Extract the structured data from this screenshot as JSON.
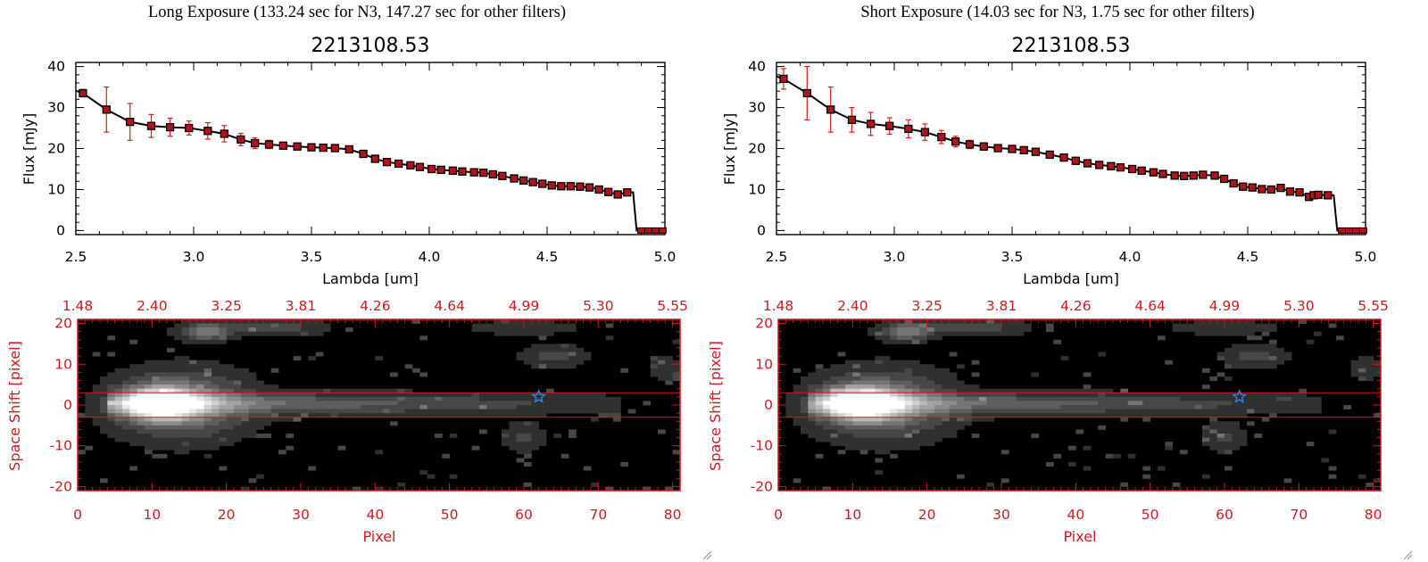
{
  "colors": {
    "spectrum_line": "#000000",
    "point_fill": "#b0141a",
    "error_bar": "#e01b1b",
    "image_axis": "#d0181e",
    "aperture_line": "#d0181e",
    "star_marker": "#2a8ae8",
    "image_background": "#000000"
  },
  "grip_icon": "resize-grip-icon",
  "panels": [
    {
      "exposure_title": "Long Exposure (133.24 sec for N3, 147.27 sec for other filters)",
      "object_id": "2213108.53"
    },
    {
      "exposure_title": "Short Exposure (14.03 sec for N3, 1.75 sec for other filters)",
      "object_id": "2213108.53"
    }
  ],
  "chart_data": [
    {
      "type": "line",
      "title": "2213108.53",
      "xlabel": "Lambda [um]",
      "ylabel": "Flux [mJy]",
      "xlim": [
        2.5,
        5.0
      ],
      "ylim": [
        -1,
        41
      ],
      "xticks": [
        "2.5",
        "3.0",
        "3.5",
        "4.0",
        "4.5",
        "5.0"
      ],
      "yticks": [
        "0",
        "10",
        "20",
        "30",
        "40"
      ],
      "x": [
        2.53,
        2.63,
        2.73,
        2.82,
        2.9,
        2.98,
        3.06,
        3.13,
        3.2,
        3.26,
        3.32,
        3.38,
        3.44,
        3.5,
        3.55,
        3.6,
        3.66,
        3.72,
        3.77,
        3.82,
        3.87,
        3.92,
        3.96,
        4.01,
        4.05,
        4.1,
        4.14,
        4.19,
        4.23,
        4.27,
        4.31,
        4.36,
        4.4,
        4.44,
        4.48,
        4.52,
        4.56,
        4.6,
        4.64,
        4.68,
        4.72,
        4.76,
        4.8,
        4.84
      ],
      "series": [
        {
          "name": "Flux",
          "values": [
            33.5,
            29.5,
            26.5,
            25.5,
            25.2,
            25.0,
            24.3,
            23.6,
            22.2,
            21.3,
            21.0,
            20.7,
            20.5,
            20.3,
            20.2,
            20.1,
            19.8,
            18.7,
            17.5,
            16.7,
            16.3,
            15.9,
            15.5,
            15.0,
            14.8,
            14.6,
            14.4,
            14.2,
            14.1,
            13.7,
            13.3,
            12.7,
            12.2,
            11.8,
            11.4,
            11.0,
            10.8,
            10.8,
            10.7,
            10.5,
            10.0,
            9.4,
            8.8,
            9.3
          ],
          "errors": [
            0.9,
            5.5,
            4.5,
            2.8,
            2.2,
            1.7,
            2.0,
            2.0,
            1.5,
            1.3,
            1.0,
            0.8,
            0.7,
            0.6,
            0.6,
            0.6,
            0.6,
            0.6,
            0.6,
            0.5,
            0.5,
            0.5,
            0.5,
            0.5,
            0.5,
            0.5,
            0.5,
            0.5,
            0.5,
            0.5,
            0.5,
            0.5,
            0.5,
            0.5,
            0.5,
            0.5,
            0.5,
            0.5,
            0.5,
            0.5,
            0.5,
            0.5,
            0.5,
            0.5
          ]
        }
      ],
      "drop_to_zero": {
        "x_start": 4.865,
        "x_end": 4.88
      },
      "zero_points_x": [
        4.9,
        4.93,
        4.96,
        4.99
      ],
      "image": {
        "xlabel": "Pixel",
        "ylabel": "Space Shift [pixel]",
        "xlim": [
          0,
          81
        ],
        "ylim": [
          -21,
          21
        ],
        "xticks": [
          "0",
          "10",
          "20",
          "30",
          "40",
          "50",
          "60",
          "70",
          "80"
        ],
        "yticks": [
          "-20",
          "-10",
          "0",
          "10",
          "20"
        ],
        "top_ticks": [
          "1.48",
          "2.40",
          "3.25",
          "3.81",
          "4.26",
          "4.64",
          "4.99",
          "5.30",
          "5.55"
        ],
        "aperture": [
          -3,
          3
        ],
        "star": {
          "x": 62,
          "y": 2
        }
      }
    },
    {
      "type": "line",
      "title": "2213108.53",
      "xlabel": "Lambda [um]",
      "ylabel": "Flux [mJy]",
      "xlim": [
        2.5,
        5.0
      ],
      "ylim": [
        -1,
        41
      ],
      "xticks": [
        "2.5",
        "3.0",
        "3.5",
        "4.0",
        "4.5",
        "5.0"
      ],
      "yticks": [
        "0",
        "10",
        "20",
        "30",
        "40"
      ],
      "x": [
        2.53,
        2.63,
        2.73,
        2.82,
        2.9,
        2.98,
        3.06,
        3.13,
        3.2,
        3.26,
        3.32,
        3.38,
        3.44,
        3.5,
        3.55,
        3.6,
        3.66,
        3.72,
        3.77,
        3.82,
        3.87,
        3.92,
        3.96,
        4.01,
        4.05,
        4.1,
        4.14,
        4.19,
        4.23,
        4.27,
        4.31,
        4.36,
        4.4,
        4.44,
        4.48,
        4.52,
        4.56,
        4.6,
        4.64,
        4.68,
        4.72,
        4.76,
        4.78,
        4.8,
        4.84
      ],
      "series": [
        {
          "name": "Flux",
          "values": [
            37.0,
            33.5,
            29.5,
            27.0,
            26.0,
            25.5,
            24.8,
            24.0,
            22.8,
            21.7,
            21.0,
            20.5,
            20.1,
            19.9,
            19.6,
            19.2,
            18.5,
            17.8,
            17.0,
            16.4,
            16.0,
            15.7,
            15.4,
            15.0,
            14.6,
            14.2,
            13.8,
            13.4,
            13.3,
            13.4,
            13.6,
            13.4,
            12.6,
            11.5,
            10.7,
            10.5,
            10.1,
            10.0,
            10.4,
            9.5,
            9.3,
            8.2,
            8.6,
            8.7,
            8.6
          ],
          "errors": [
            2.5,
            6.5,
            5.5,
            3.0,
            2.8,
            2.0,
            2.2,
            2.0,
            1.6,
            1.3,
            1.0,
            0.9,
            0.8,
            0.7,
            0.6,
            0.6,
            0.6,
            0.6,
            0.6,
            0.5,
            0.5,
            0.5,
            0.5,
            0.5,
            0.5,
            0.5,
            0.5,
            0.5,
            0.5,
            0.5,
            0.5,
            0.5,
            0.5,
            0.5,
            0.5,
            0.5,
            0.5,
            0.5,
            0.5,
            0.5,
            0.5,
            0.5,
            0.5,
            0.5,
            0.5
          ]
        }
      ],
      "drop_to_zero": {
        "x_start": 4.865,
        "x_end": 4.88
      },
      "zero_points_x": [
        4.9,
        4.93,
        4.96,
        4.99
      ],
      "image": {
        "xlabel": "Pixel",
        "ylabel": "Space Shift [pixel]",
        "xlim": [
          0,
          81
        ],
        "ylim": [
          -21,
          21
        ],
        "xticks": [
          "0",
          "10",
          "20",
          "30",
          "40",
          "50",
          "60",
          "70",
          "80"
        ],
        "yticks": [
          "-20",
          "-10",
          "0",
          "10",
          "20"
        ],
        "top_ticks": [
          "1.48",
          "2.40",
          "3.25",
          "3.81",
          "4.26",
          "4.64",
          "4.99",
          "5.30",
          "5.55"
        ],
        "aperture": [
          -3,
          3
        ],
        "star": {
          "x": 62,
          "y": 2
        }
      }
    }
  ]
}
